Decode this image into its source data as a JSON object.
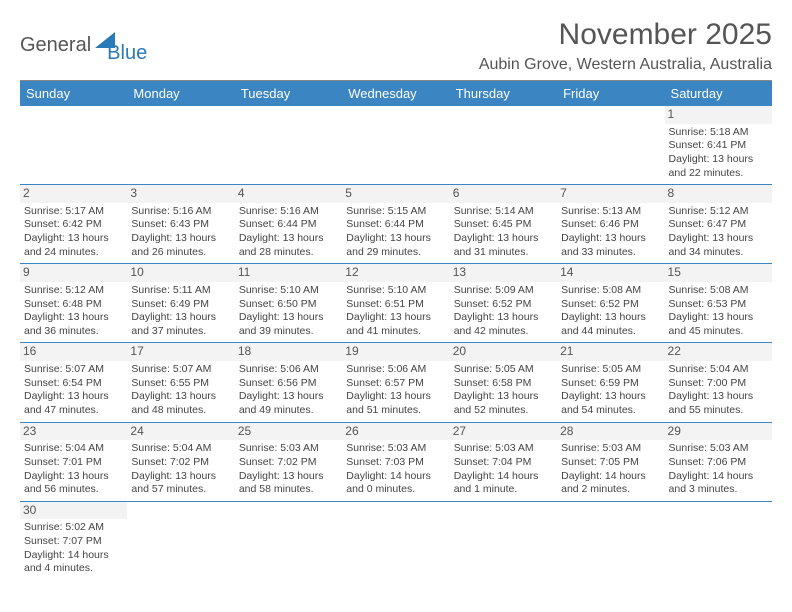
{
  "logo": {
    "word1": "General",
    "word2": "Blue"
  },
  "title": "November 2025",
  "location": "Aubin Grove, Western Australia, Australia",
  "colors": {
    "header_bg": "#3b85c2",
    "accent": "#2a7ab8"
  },
  "day_headers": [
    "Sunday",
    "Monday",
    "Tuesday",
    "Wednesday",
    "Thursday",
    "Friday",
    "Saturday"
  ],
  "weeks": [
    [
      null,
      null,
      null,
      null,
      null,
      null,
      {
        "n": "1",
        "sr": "Sunrise: 5:18 AM",
        "ss": "Sunset: 6:41 PM",
        "d1": "Daylight: 13 hours",
        "d2": "and 22 minutes."
      }
    ],
    [
      {
        "n": "2",
        "sr": "Sunrise: 5:17 AM",
        "ss": "Sunset: 6:42 PM",
        "d1": "Daylight: 13 hours",
        "d2": "and 24 minutes."
      },
      {
        "n": "3",
        "sr": "Sunrise: 5:16 AM",
        "ss": "Sunset: 6:43 PM",
        "d1": "Daylight: 13 hours",
        "d2": "and 26 minutes."
      },
      {
        "n": "4",
        "sr": "Sunrise: 5:16 AM",
        "ss": "Sunset: 6:44 PM",
        "d1": "Daylight: 13 hours",
        "d2": "and 28 minutes."
      },
      {
        "n": "5",
        "sr": "Sunrise: 5:15 AM",
        "ss": "Sunset: 6:44 PM",
        "d1": "Daylight: 13 hours",
        "d2": "and 29 minutes."
      },
      {
        "n": "6",
        "sr": "Sunrise: 5:14 AM",
        "ss": "Sunset: 6:45 PM",
        "d1": "Daylight: 13 hours",
        "d2": "and 31 minutes."
      },
      {
        "n": "7",
        "sr": "Sunrise: 5:13 AM",
        "ss": "Sunset: 6:46 PM",
        "d1": "Daylight: 13 hours",
        "d2": "and 33 minutes."
      },
      {
        "n": "8",
        "sr": "Sunrise: 5:12 AM",
        "ss": "Sunset: 6:47 PM",
        "d1": "Daylight: 13 hours",
        "d2": "and 34 minutes."
      }
    ],
    [
      {
        "n": "9",
        "sr": "Sunrise: 5:12 AM",
        "ss": "Sunset: 6:48 PM",
        "d1": "Daylight: 13 hours",
        "d2": "and 36 minutes."
      },
      {
        "n": "10",
        "sr": "Sunrise: 5:11 AM",
        "ss": "Sunset: 6:49 PM",
        "d1": "Daylight: 13 hours",
        "d2": "and 37 minutes."
      },
      {
        "n": "11",
        "sr": "Sunrise: 5:10 AM",
        "ss": "Sunset: 6:50 PM",
        "d1": "Daylight: 13 hours",
        "d2": "and 39 minutes."
      },
      {
        "n": "12",
        "sr": "Sunrise: 5:10 AM",
        "ss": "Sunset: 6:51 PM",
        "d1": "Daylight: 13 hours",
        "d2": "and 41 minutes."
      },
      {
        "n": "13",
        "sr": "Sunrise: 5:09 AM",
        "ss": "Sunset: 6:52 PM",
        "d1": "Daylight: 13 hours",
        "d2": "and 42 minutes."
      },
      {
        "n": "14",
        "sr": "Sunrise: 5:08 AM",
        "ss": "Sunset: 6:52 PM",
        "d1": "Daylight: 13 hours",
        "d2": "and 44 minutes."
      },
      {
        "n": "15",
        "sr": "Sunrise: 5:08 AM",
        "ss": "Sunset: 6:53 PM",
        "d1": "Daylight: 13 hours",
        "d2": "and 45 minutes."
      }
    ],
    [
      {
        "n": "16",
        "sr": "Sunrise: 5:07 AM",
        "ss": "Sunset: 6:54 PM",
        "d1": "Daylight: 13 hours",
        "d2": "and 47 minutes."
      },
      {
        "n": "17",
        "sr": "Sunrise: 5:07 AM",
        "ss": "Sunset: 6:55 PM",
        "d1": "Daylight: 13 hours",
        "d2": "and 48 minutes."
      },
      {
        "n": "18",
        "sr": "Sunrise: 5:06 AM",
        "ss": "Sunset: 6:56 PM",
        "d1": "Daylight: 13 hours",
        "d2": "and 49 minutes."
      },
      {
        "n": "19",
        "sr": "Sunrise: 5:06 AM",
        "ss": "Sunset: 6:57 PM",
        "d1": "Daylight: 13 hours",
        "d2": "and 51 minutes."
      },
      {
        "n": "20",
        "sr": "Sunrise: 5:05 AM",
        "ss": "Sunset: 6:58 PM",
        "d1": "Daylight: 13 hours",
        "d2": "and 52 minutes."
      },
      {
        "n": "21",
        "sr": "Sunrise: 5:05 AM",
        "ss": "Sunset: 6:59 PM",
        "d1": "Daylight: 13 hours",
        "d2": "and 54 minutes."
      },
      {
        "n": "22",
        "sr": "Sunrise: 5:04 AM",
        "ss": "Sunset: 7:00 PM",
        "d1": "Daylight: 13 hours",
        "d2": "and 55 minutes."
      }
    ],
    [
      {
        "n": "23",
        "sr": "Sunrise: 5:04 AM",
        "ss": "Sunset: 7:01 PM",
        "d1": "Daylight: 13 hours",
        "d2": "and 56 minutes."
      },
      {
        "n": "24",
        "sr": "Sunrise: 5:04 AM",
        "ss": "Sunset: 7:02 PM",
        "d1": "Daylight: 13 hours",
        "d2": "and 57 minutes."
      },
      {
        "n": "25",
        "sr": "Sunrise: 5:03 AM",
        "ss": "Sunset: 7:02 PM",
        "d1": "Daylight: 13 hours",
        "d2": "and 58 minutes."
      },
      {
        "n": "26",
        "sr": "Sunrise: 5:03 AM",
        "ss": "Sunset: 7:03 PM",
        "d1": "Daylight: 14 hours",
        "d2": "and 0 minutes."
      },
      {
        "n": "27",
        "sr": "Sunrise: 5:03 AM",
        "ss": "Sunset: 7:04 PM",
        "d1": "Daylight: 14 hours",
        "d2": "and 1 minute."
      },
      {
        "n": "28",
        "sr": "Sunrise: 5:03 AM",
        "ss": "Sunset: 7:05 PM",
        "d1": "Daylight: 14 hours",
        "d2": "and 2 minutes."
      },
      {
        "n": "29",
        "sr": "Sunrise: 5:03 AM",
        "ss": "Sunset: 7:06 PM",
        "d1": "Daylight: 14 hours",
        "d2": "and 3 minutes."
      }
    ],
    [
      {
        "n": "30",
        "sr": "Sunrise: 5:02 AM",
        "ss": "Sunset: 7:07 PM",
        "d1": "Daylight: 14 hours",
        "d2": "and 4 minutes."
      },
      null,
      null,
      null,
      null,
      null,
      null
    ]
  ]
}
